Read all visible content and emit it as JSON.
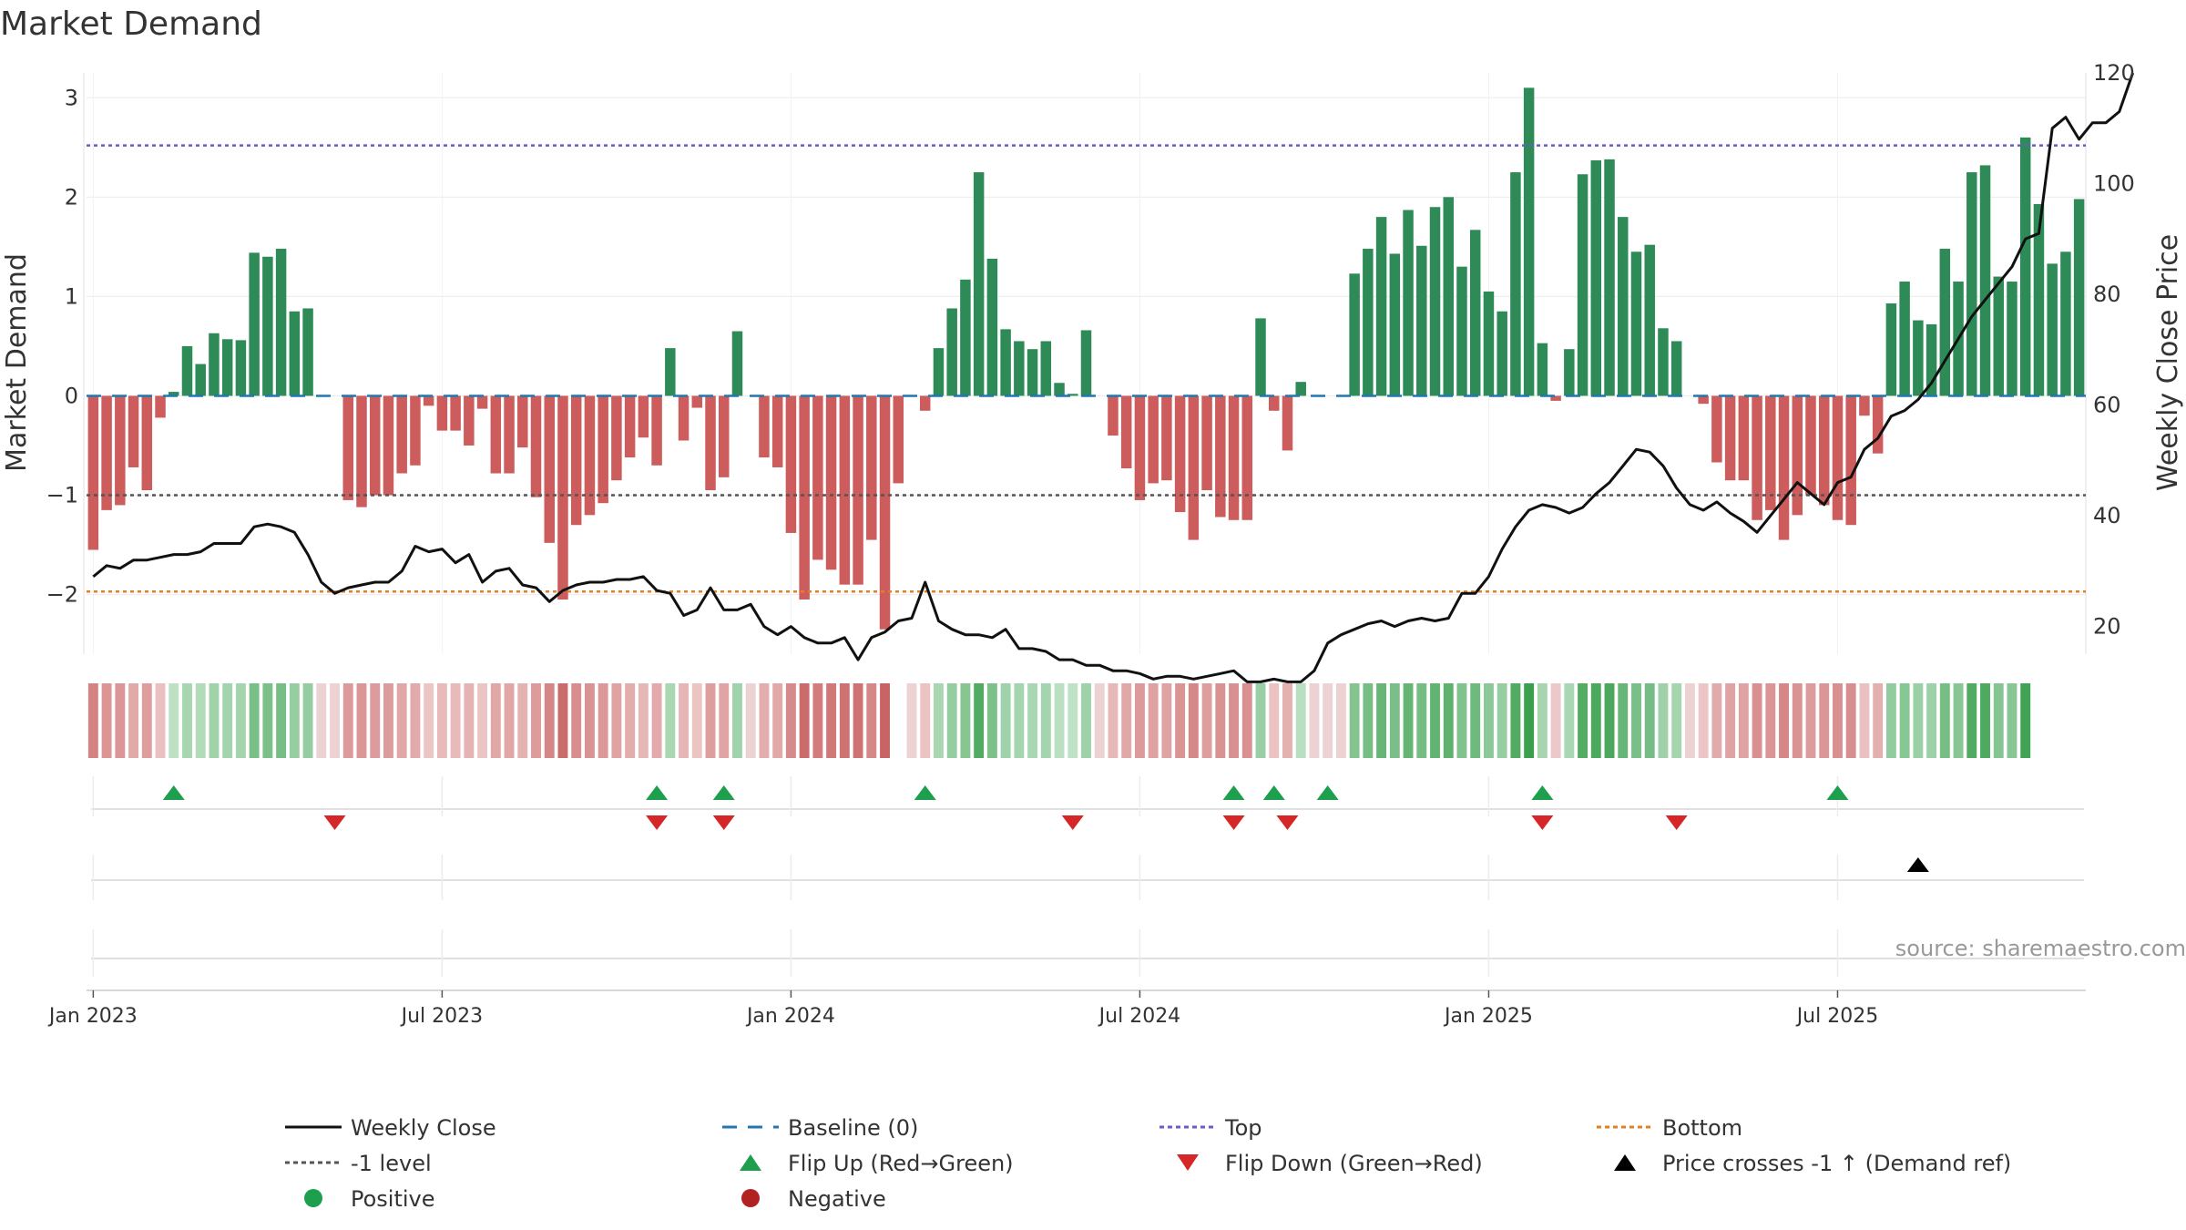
{
  "chart_data": {
    "type": "bar",
    "title": "Market Demand",
    "ylabel_left": "Market Demand",
    "ylabel_right": "Weekly Close Price",
    "ylim_left": [
      -2.6,
      3.25
    ],
    "ylim_right": [
      15,
      120
    ],
    "yticks_left": [
      {
        "value": 3,
        "label": "3"
      },
      {
        "value": 2,
        "label": "2"
      },
      {
        "value": 1,
        "label": "1"
      },
      {
        "value": 0,
        "label": "0"
      },
      {
        "value": -1,
        "label": "−1"
      },
      {
        "value": -2,
        "label": "−2"
      }
    ],
    "yticks_right": [
      {
        "value": 120,
        "label": "120"
      },
      {
        "value": 100,
        "label": "100"
      },
      {
        "value": 80,
        "label": "80"
      },
      {
        "value": 60,
        "label": "60"
      },
      {
        "value": 40,
        "label": "40"
      },
      {
        "value": 20,
        "label": "20"
      }
    ],
    "x_week_start": "2023-01-02",
    "xticks": [
      {
        "week": 0,
        "label": "Jan 2023"
      },
      {
        "week": 26,
        "label": "Jul 2023"
      },
      {
        "week": 52,
        "label": "Jan 2024"
      },
      {
        "week": 78,
        "label": "Jul 2024"
      },
      {
        "week": 104,
        "label": "Jan 2025"
      },
      {
        "week": 130,
        "label": "Jul 2025"
      }
    ],
    "reference_lines": {
      "top": 2.52,
      "bottom": -1.97,
      "minus_one": -1,
      "baseline": 0
    },
    "demand": [
      -1.55,
      -1.15,
      -1.1,
      -0.72,
      -0.95,
      -0.22,
      0.04,
      0.5,
      0.32,
      0.63,
      0.57,
      0.56,
      1.44,
      1.4,
      1.48,
      0.85,
      0.88,
      0,
      0,
      -1.05,
      -1.12,
      -1.0,
      -1.0,
      -0.78,
      -0.7,
      -0.1,
      -0.35,
      -0.35,
      -0.5,
      -0.13,
      -0.78,
      -0.78,
      -0.52,
      -1.02,
      -1.48,
      -2.05,
      -1.3,
      -1.2,
      -1.08,
      -0.85,
      -0.62,
      -0.42,
      -0.7,
      0.48,
      -0.45,
      -0.12,
      -0.95,
      -0.82,
      0.65,
      0,
      -0.62,
      -0.72,
      -1.38,
      -2.05,
      -1.65,
      -1.75,
      -1.9,
      -1.9,
      -1.45,
      -2.35,
      -0.88,
      0,
      -0.15,
      0.48,
      0.88,
      1.17,
      2.25,
      1.38,
      0.67,
      0.55,
      0.47,
      0.55,
      0.13,
      0.02,
      0.66,
      0,
      -0.4,
      -0.73,
      -1.05,
      -0.88,
      -0.85,
      -1.17,
      -1.45,
      -0.95,
      -1.22,
      -1.25,
      -1.25,
      0.78,
      -0.15,
      -0.55,
      0.14,
      0,
      0,
      0,
      1.23,
      1.48,
      1.8,
      1.43,
      1.87,
      1.51,
      1.9,
      2.0,
      1.3,
      1.67,
      1.05,
      0.85,
      2.25,
      3.1,
      0.53,
      -0.05,
      0.47,
      2.23,
      2.37,
      2.38,
      1.8,
      1.45,
      1.52,
      0.68,
      0.55,
      0,
      -0.08,
      -0.67,
      -0.85,
      -0.85,
      -1.25,
      -1.15,
      -1.45,
      -1.2,
      -1.0,
      -1.1,
      -1.25,
      -1.3,
      -0.2,
      -0.58,
      0.93,
      1.15,
      0.76,
      0.72,
      1.48,
      1.15,
      2.25,
      2.32,
      1.2,
      1.15,
      2.6,
      1.93,
      1.33,
      1.45,
      1.98
    ],
    "weekly_close": [
      29,
      31,
      30.5,
      32,
      32,
      32.5,
      33,
      33,
      33.5,
      35,
      35,
      35,
      38,
      38.5,
      38,
      37,
      33,
      28,
      26,
      27,
      27.5,
      28,
      28,
      30,
      34.5,
      33.5,
      34,
      31.5,
      33,
      28,
      30,
      30.5,
      27.5,
      27,
      24.5,
      26.5,
      27.5,
      28,
      28,
      28.5,
      28.5,
      29,
      26.5,
      26,
      22,
      23,
      27,
      23,
      23,
      24,
      20,
      18.5,
      20,
      18,
      17,
      17,
      18,
      14,
      18,
      19,
      21,
      21.5,
      28,
      21,
      19.5,
      18.5,
      18.5,
      18,
      19.5,
      16,
      16,
      15.5,
      14,
      14,
      13,
      13,
      12,
      12,
      11.5,
      10.5,
      11,
      11,
      10.5,
      11,
      11.5,
      12,
      10,
      10,
      10.5,
      10,
      10,
      12,
      17,
      18.5,
      19.5,
      20.5,
      21,
      20,
      21,
      21.5,
      21,
      21.5,
      26,
      26,
      29,
      34,
      38,
      41,
      42,
      41.5,
      40.5,
      41.5,
      44,
      46,
      49,
      52,
      51.5,
      49,
      45,
      42,
      41,
      42.5,
      40.5,
      39,
      37,
      40,
      43,
      46,
      44,
      42,
      46,
      47,
      52,
      54,
      58,
      59,
      61,
      64,
      68,
      72,
      76,
      79,
      82,
      85,
      90,
      91,
      110,
      112,
      108,
      111,
      111,
      113,
      120
    ]
  },
  "band": {
    "slots": [
      0,
      1,
      2,
      3,
      4,
      5,
      6,
      7,
      8,
      9,
      10,
      11,
      12,
      13,
      14,
      15,
      16,
      17,
      18,
      19,
      20,
      21,
      22,
      23,
      24,
      25,
      26,
      27,
      28,
      29,
      30,
      31,
      32,
      33,
      34,
      35,
      36,
      37,
      38,
      39,
      40,
      41,
      42,
      43,
      44,
      45,
      46,
      47,
      48,
      49,
      50,
      51,
      52,
      53,
      54,
      55,
      56,
      57,
      58,
      59,
      61,
      62,
      63,
      64,
      65,
      66,
      67,
      68,
      69,
      70,
      71,
      72,
      73,
      74,
      75,
      76,
      77,
      78,
      79,
      80,
      81,
      82,
      83,
      84,
      85,
      86,
      87,
      88,
      89,
      90,
      91,
      92,
      93,
      94,
      95,
      96,
      97,
      98,
      99,
      100,
      101,
      102,
      103,
      104,
      105,
      106,
      107,
      108,
      109,
      110,
      111,
      112,
      113,
      114,
      115,
      116,
      117,
      118,
      119,
      120,
      121,
      122,
      123,
      124,
      125,
      126,
      127,
      128,
      129,
      130,
      131,
      132,
      133,
      134,
      135,
      136,
      137,
      138,
      139,
      140,
      141,
      142,
      143,
      144
    ]
  },
  "events": {
    "flip_up_weeks": [
      6,
      42,
      47,
      62,
      85,
      88,
      92,
      108,
      130
    ],
    "flip_down_weeks": [
      18,
      42,
      47,
      73,
      85,
      89,
      108,
      118
    ],
    "price_cross_weeks": [
      136
    ]
  },
  "colors": {
    "positive": "#2e8b57",
    "negative": "#cd5c5c",
    "top": "#6a5acd",
    "bottom": "#e67e22",
    "baseline": "#1f77b4",
    "minus_one": "#555555",
    "close": "#111111",
    "flip_up": "#1e9f4e",
    "flip_down": "#d62728",
    "cross": "#000000"
  },
  "legend": [
    {
      "label": "Weekly Close",
      "icon": "line-solid",
      "color": "#111111"
    },
    {
      "label": "Baseline (0)",
      "icon": "line-dashed",
      "color": "#1f77b4"
    },
    {
      "label": "Top",
      "icon": "line-dotted",
      "color": "#6a5acd"
    },
    {
      "label": "Bottom",
      "icon": "line-dotted",
      "color": "#e67e22"
    },
    {
      "label": "-1 level",
      "icon": "line-dotted",
      "color": "#555555"
    },
    {
      "label": "Flip Up (Red→Green)",
      "icon": "triangle-up",
      "color": "#1e9f4e"
    },
    {
      "label": "Flip Down (Green→Red)",
      "icon": "triangle-down",
      "color": "#d62728"
    },
    {
      "label": "Price crosses -1 ↑ (Demand ref)",
      "icon": "triangle-up",
      "color": "#000000"
    },
    {
      "label": "Positive",
      "icon": "circle",
      "color": "#1e9f4e"
    },
    {
      "label": "Negative",
      "icon": "circle",
      "color": "#b22222"
    }
  ],
  "source": "source: sharemaestro.com"
}
